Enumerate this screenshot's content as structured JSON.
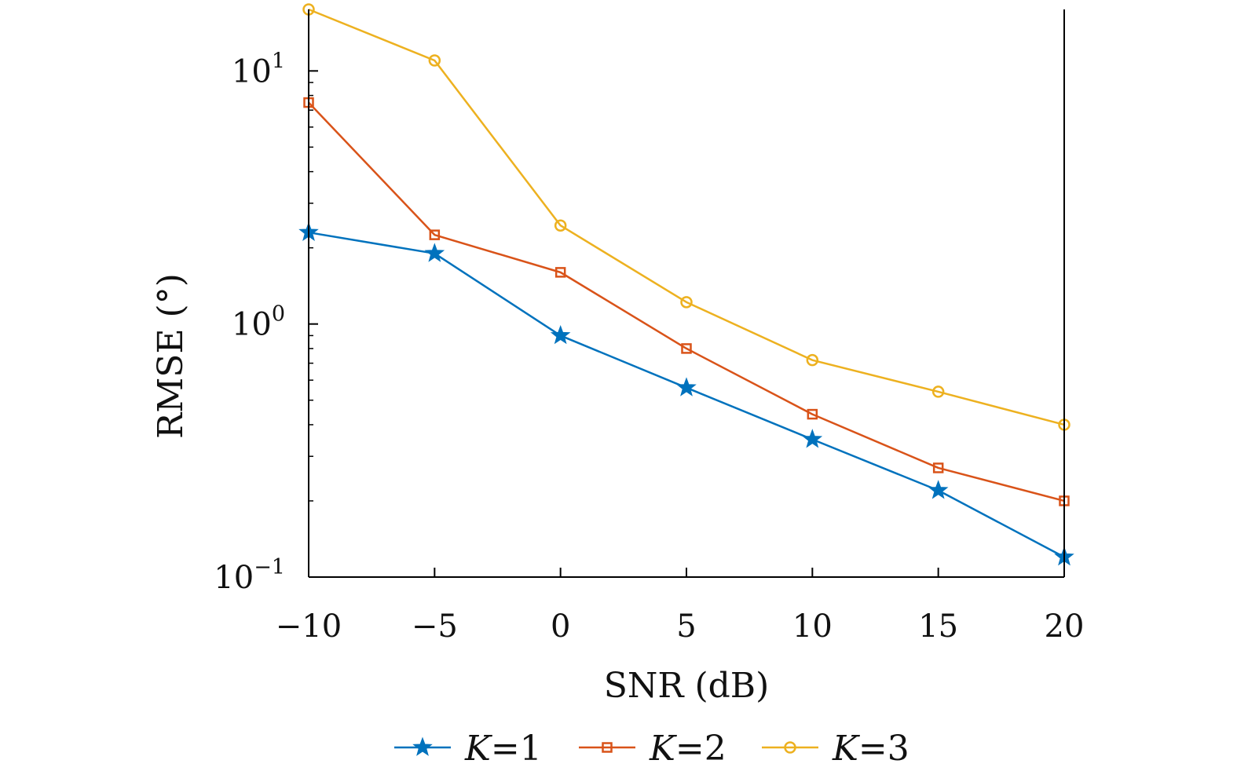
{
  "chart_data": {
    "type": "line",
    "xlabel": "SNR (dB)",
    "ylabel": "RMSE (°)",
    "x": [
      -10,
      -5,
      0,
      5,
      10,
      15,
      20
    ],
    "xticks": [
      {
        "value": -10,
        "label": "−10"
      },
      {
        "value": -5,
        "label": "−5"
      },
      {
        "value": 0,
        "label": "0"
      },
      {
        "value": 5,
        "label": "5"
      },
      {
        "value": 10,
        "label": "10"
      },
      {
        "value": 15,
        "label": "15"
      },
      {
        "value": 20,
        "label": "20"
      }
    ],
    "yscale": "log",
    "xlim": [
      -10,
      20
    ],
    "ylim": [
      0.1,
      17.5
    ],
    "yticks": [
      {
        "value": 0.1,
        "base": "10",
        "exp": "−1"
      },
      {
        "value": 1,
        "base": "10",
        "exp": "0"
      },
      {
        "value": 10,
        "base": "10",
        "exp": "1"
      }
    ],
    "grid": false,
    "legend_position": "bottom",
    "series": [
      {
        "name": "K=1",
        "legend_var": "K",
        "legend_rest": "=1",
        "color": "#0072BD",
        "marker": "star",
        "values": [
          2.3,
          1.9,
          0.9,
          0.56,
          0.35,
          0.22,
          0.12
        ]
      },
      {
        "name": "K=2",
        "legend_var": "K",
        "legend_rest": "=2",
        "color": "#D95319",
        "marker": "square",
        "values": [
          7.5,
          2.25,
          1.6,
          0.8,
          0.44,
          0.27,
          0.2
        ]
      },
      {
        "name": "K=3",
        "legend_var": "K",
        "legend_rest": "=3",
        "color": "#EDB120",
        "marker": "circle",
        "values": [
          17.5,
          11,
          2.45,
          1.22,
          0.72,
          0.54,
          0.4
        ]
      }
    ]
  }
}
